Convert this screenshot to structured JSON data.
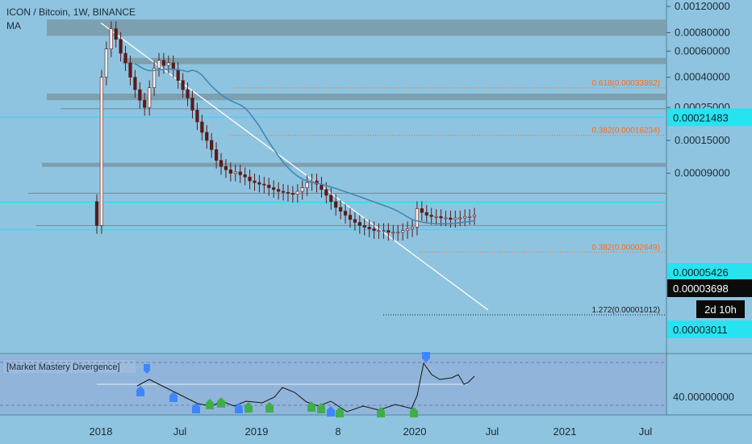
{
  "header": {
    "symbol_title": "ICON / Bitcoin, 1W, BINANCE",
    "indicator": "MA"
  },
  "colors": {
    "background": "#8fc4e0",
    "zone": "#7a9cab",
    "cyan": "#28e3ef",
    "fib": "#ff6a1a",
    "ma_line": "#3f8ab3",
    "trendline": "#ffffff",
    "candle": "#5a1a1a",
    "divergence_panel": "#93a9d6",
    "price_box": "#0b0b0b",
    "up_marker": "#3d86ff",
    "down_marker": "#3fae4a"
  },
  "chart_data": [
    {
      "type": "candlestick",
      "title": "ICON / Bitcoin, 1W, BINANCE",
      "y_scale": "log",
      "y_axis_ticks": [
        "0.00120000",
        "0.00080000",
        "0.00060000",
        "0.00040000",
        "0.00025000",
        "0.00015000",
        "0.00009000"
      ],
      "y_axis_highlights": [
        {
          "label": "0.00021483",
          "value": 0.00021483
        },
        {
          "label": "0.00005426",
          "value": 5.426e-05
        },
        {
          "label": "0.00003698",
          "value": 3.698e-05
        },
        {
          "label": "0.00003011",
          "value": 3.011e-05
        }
      ],
      "countdown": "2d 10h",
      "x_axis_ticks": [
        "2018",
        "Jul",
        "2019",
        "8",
        "2020",
        "Jul",
        "2021",
        "Jul"
      ],
      "candles_close": [
        4e-05,
        0.0004,
        0.00062,
        0.00085,
        0.00072,
        0.00058,
        0.0005,
        0.0004,
        0.00033,
        0.00028,
        0.00025,
        0.00034,
        0.00046,
        0.00052,
        0.00048,
        0.0005,
        0.00045,
        0.00038,
        0.00033,
        0.00029,
        0.00024,
        0.0002,
        0.00017,
        0.00015,
        0.00013,
        0.00011,
        0.0001,
        9.5e-05,
        9e-05,
        9.2e-05,
        8.8e-05,
        8.5e-05,
        8e-05,
        7.8e-05,
        7.6e-05,
        7.5e-05,
        7.2e-05,
        7e-05,
        6.8e-05,
        6.7e-05,
        6.6e-05,
        6.5e-05,
        6.8e-05,
        7.2e-05,
        7.8e-05,
        8e-05,
        7.6e-05,
        7e-05,
        6.4e-05,
        5.8e-05,
        5.3e-05,
        5e-05,
        4.7e-05,
        4.4e-05,
        4.2e-05,
        4e-05,
        3.9e-05,
        3.8e-05,
        3.7e-05,
        3.7e-05,
        3.7e-05,
        3.6e-05,
        3.6e-05,
        3.6e-05,
        3.7e-05,
        3.8e-05,
        3.9e-05,
        5.2e-05,
        4.9e-05,
        4.7e-05,
        4.6e-05,
        4.6e-05,
        4.5e-05,
        4.5e-05,
        4.4e-05,
        4.5e-05,
        4.5e-05,
        4.6e-05,
        4.6e-05,
        4.7e-05
      ],
      "fib_levels": [
        {
          "label": "0.618(0.00033892)",
          "value": 0.00033892
        },
        {
          "label": "0.382(0.00016234)",
          "value": 0.00016234
        },
        {
          "label": "0.382(0.00002649)",
          "value": 2.649e-05
        },
        {
          "label": "1.272(0.00001012)",
          "value": 1.012e-05
        }
      ]
    },
    {
      "type": "line",
      "title": "[Market Mastery Divergence]",
      "y_axis_ticks": [
        "40.00000000"
      ]
    }
  ]
}
